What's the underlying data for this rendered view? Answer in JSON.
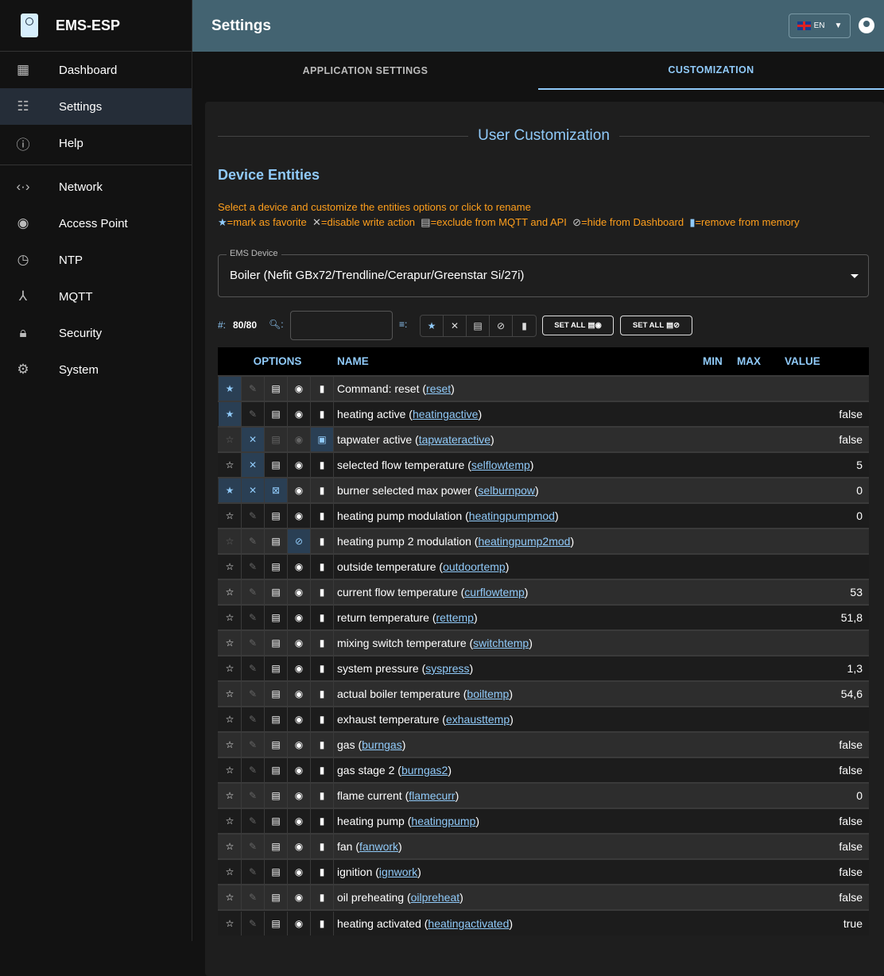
{
  "app": {
    "name": "EMS-ESP",
    "page_title": "Settings",
    "language": "EN"
  },
  "sidebar": {
    "items": [
      {
        "label": "Dashboard",
        "icon": "dashboard-icon"
      },
      {
        "label": "Settings",
        "icon": "tune-icon",
        "selected": true
      },
      {
        "label": "Help",
        "icon": "info-icon"
      },
      {
        "label": "Network",
        "icon": "settings-ethernet-icon"
      },
      {
        "label": "Access Point",
        "icon": "wifi-tethering-icon"
      },
      {
        "label": "NTP",
        "icon": "clock-icon"
      },
      {
        "label": "MQTT",
        "icon": "device-hub-icon"
      },
      {
        "label": "Security",
        "icon": "lock-icon"
      },
      {
        "label": "System",
        "icon": "gear-icon"
      }
    ]
  },
  "tabs": [
    {
      "label": "APPLICATION SETTINGS"
    },
    {
      "label": "CUSTOMIZATION",
      "active": true
    }
  ],
  "card": {
    "title": "User Customization",
    "section": "Device Entities",
    "help_line": "Select a device and customize the entities options or click to rename",
    "legend": [
      "=mark as favorite",
      "=disable write action",
      "=exclude from MQTT and API",
      "=hide from Dashboard",
      "=remove from memory"
    ],
    "device_label": "EMS Device",
    "device_value": "Boiler (Nefit GBx72/Trendline/Cerapur/Greenstar Si/27i)"
  },
  "toolbar": {
    "count_prefix": "#:",
    "count": "80/80",
    "search_value": "",
    "set_all_1": "SET ALL",
    "set_all_2": "SET ALL"
  },
  "table": {
    "headers": {
      "options": "OPTIONS",
      "name": "NAME",
      "min": "MIN",
      "max": "MAX",
      "value": "VALUE"
    },
    "rows": [
      {
        "label": "Command: reset (",
        "id": "reset",
        "value": "",
        "on": [
          "fav"
        ],
        "dim": []
      },
      {
        "label": "heating active (",
        "id": "heatingactive",
        "value": "false",
        "on": [
          "fav"
        ],
        "dim": []
      },
      {
        "label": "tapwater active (",
        "id": "tapwateractive",
        "value": "false",
        "on": [
          "rw",
          "del"
        ],
        "dim": [
          "fav",
          "mqtt",
          "hide"
        ]
      },
      {
        "label": "selected flow temperature (",
        "id": "selflowtemp",
        "value": "5",
        "on": [
          "rw"
        ],
        "dim": []
      },
      {
        "label": "burner selected max power (",
        "id": "selburnpow",
        "value": "0",
        "on": [
          "fav",
          "rw",
          "mqtt"
        ],
        "dim": []
      },
      {
        "label": "heating pump modulation (",
        "id": "heatingpumpmod",
        "value": "0",
        "on": [],
        "dim": []
      },
      {
        "label": "heating pump 2 modulation (",
        "id": "heatingpump2mod",
        "value": "",
        "on": [
          "hide"
        ],
        "dim": [
          "fav"
        ]
      },
      {
        "label": "outside temperature (",
        "id": "outdoortemp",
        "value": "",
        "on": [],
        "dim": []
      },
      {
        "label": "current flow temperature (",
        "id": "curflowtemp",
        "value": "53",
        "on": [],
        "dim": []
      },
      {
        "label": "return temperature (",
        "id": "rettemp",
        "value": "51,8",
        "on": [],
        "dim": []
      },
      {
        "label": "mixing switch temperature (",
        "id": "switchtemp",
        "value": "",
        "on": [],
        "dim": []
      },
      {
        "label": "system pressure (",
        "id": "syspress",
        "value": "1,3",
        "on": [],
        "dim": []
      },
      {
        "label": "actual boiler temperature (",
        "id": "boiltemp",
        "value": "54,6",
        "on": [],
        "dim": []
      },
      {
        "label": "exhaust temperature (",
        "id": "exhausttemp",
        "value": "",
        "on": [],
        "dim": []
      },
      {
        "label": "gas (",
        "id": "burngas",
        "value": "false",
        "on": [],
        "dim": []
      },
      {
        "label": "gas stage 2 (",
        "id": "burngas2",
        "value": "false",
        "on": [],
        "dim": []
      },
      {
        "label": "flame current (",
        "id": "flamecurr",
        "value": "0",
        "on": [],
        "dim": []
      },
      {
        "label": "heating pump (",
        "id": "heatingpump",
        "value": "false",
        "on": [],
        "dim": []
      },
      {
        "label": "fan (",
        "id": "fanwork",
        "value": "false",
        "on": [],
        "dim": []
      },
      {
        "label": "ignition (",
        "id": "ignwork",
        "value": "false",
        "on": [],
        "dim": []
      },
      {
        "label": "oil preheating (",
        "id": "oilpreheat",
        "value": "false",
        "on": [],
        "dim": []
      },
      {
        "label": "heating activated (",
        "id": "heatingactivated",
        "value": "true",
        "on": [],
        "dim": []
      }
    ]
  },
  "colors": {
    "accent": "#90caf9",
    "help": "#ff9f1c",
    "header": "#436371"
  }
}
